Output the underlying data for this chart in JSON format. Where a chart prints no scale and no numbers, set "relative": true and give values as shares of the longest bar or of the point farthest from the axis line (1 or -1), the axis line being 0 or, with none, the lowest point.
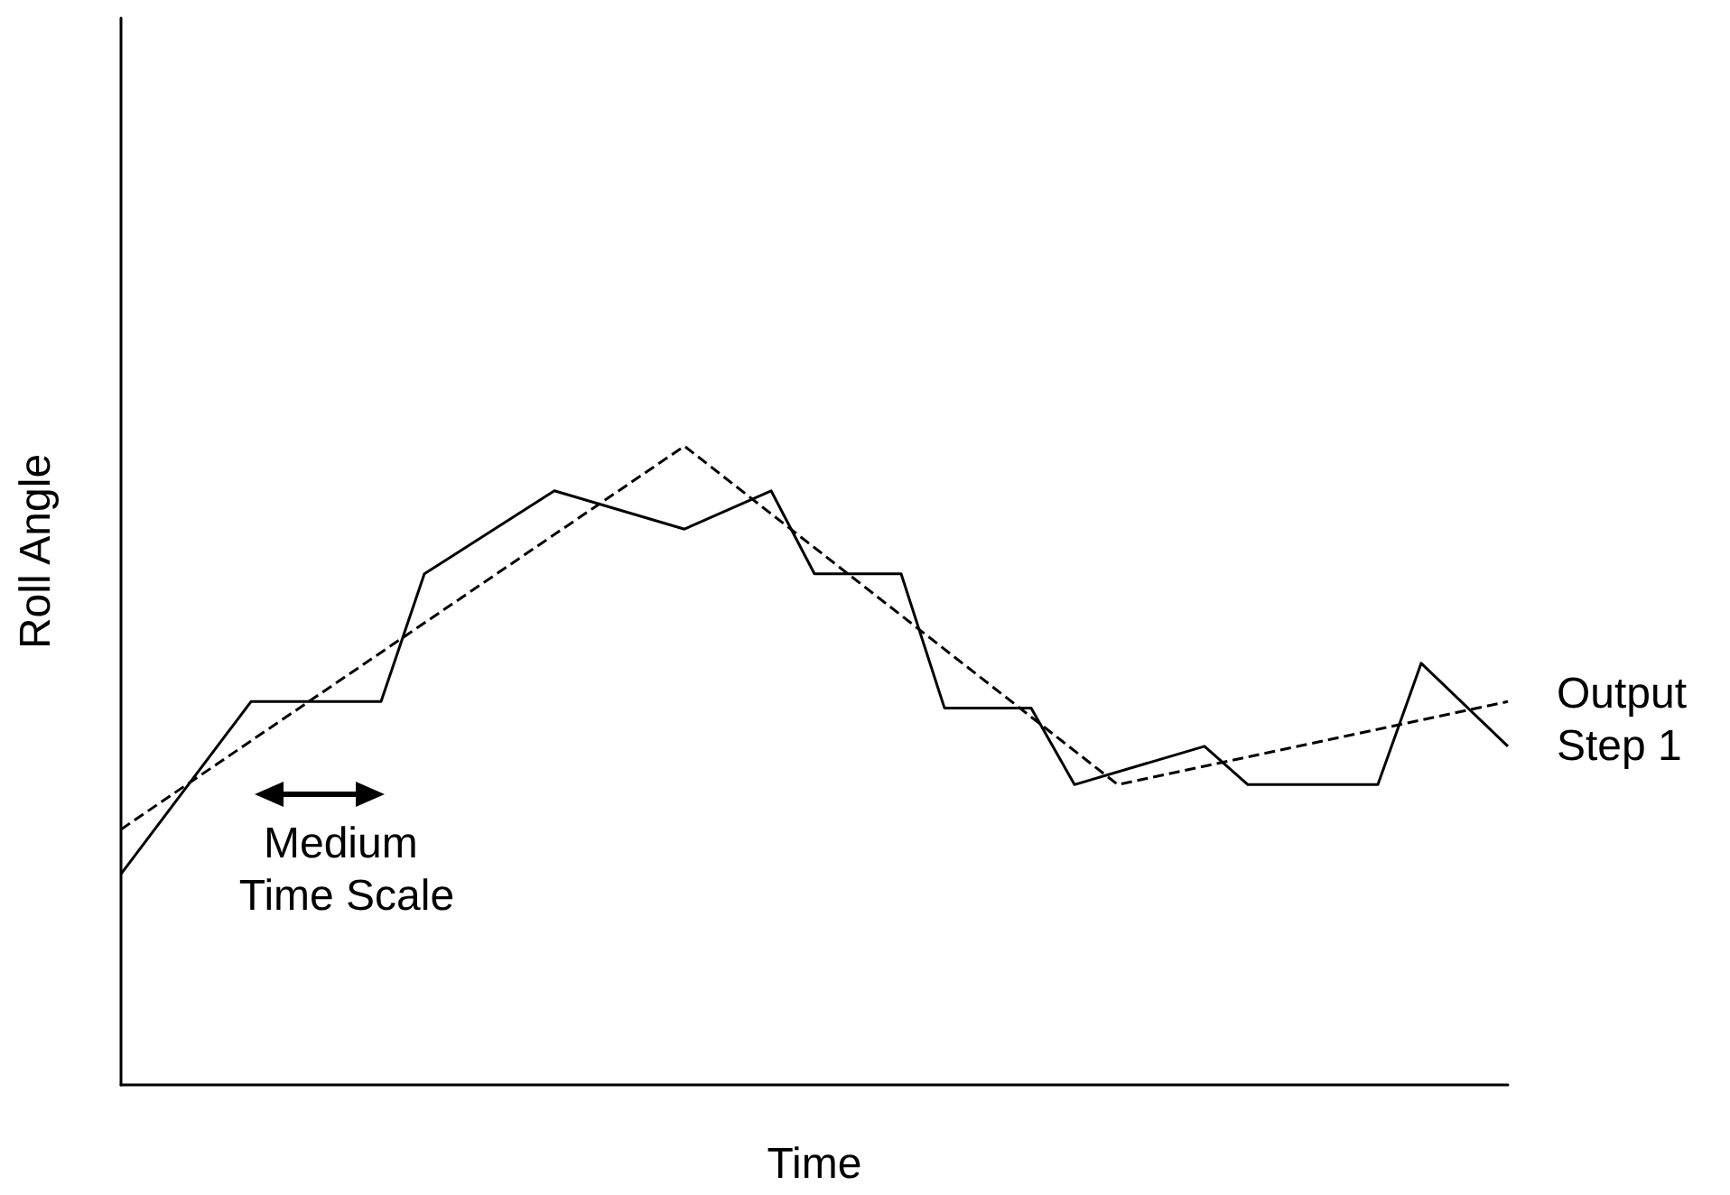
{
  "chart_data": {
    "type": "line",
    "relative": true,
    "xlabel": "Time",
    "ylabel": "Roll Angle",
    "categories": [
      null,
      null,
      null,
      null,
      null,
      null,
      null,
      null,
      null,
      null,
      null,
      null,
      null,
      null,
      null,
      null,
      null,
      null,
      null,
      null,
      null,
      null,
      null,
      null,
      null,
      null,
      null,
      null,
      null,
      null,
      null,
      null,
      null
    ],
    "series": [
      {
        "color": "#000000",
        "line_style": "solid",
        "values": [
          0.33,
          null,
          null,
          0.6,
          null,
          null,
          0.6,
          0.8,
          null,
          null,
          0.93,
          null,
          null,
          0.87,
          null,
          0.93,
          0.8,
          null,
          0.8,
          0.59,
          null,
          0.59,
          0.47,
          null,
          null,
          0.53,
          0.47,
          null,
          null,
          0.47,
          0.66,
          null,
          0.53
        ]
      },
      {
        "color": "#000000",
        "line_style": "dashed",
        "values": [
          0.4,
          null,
          null,
          null,
          null,
          null,
          null,
          null,
          null,
          null,
          null,
          null,
          null,
          1,
          null,
          null,
          null,
          null,
          null,
          null,
          null,
          null,
          null,
          0.47,
          null,
          null,
          null,
          null,
          null,
          null,
          null,
          null,
          0.6
        ]
      }
    ],
    "annotations": [
      "Medium Time Scale",
      "Output Step 1"
    ],
    "marker": "none",
    "grid": false
  }
}
